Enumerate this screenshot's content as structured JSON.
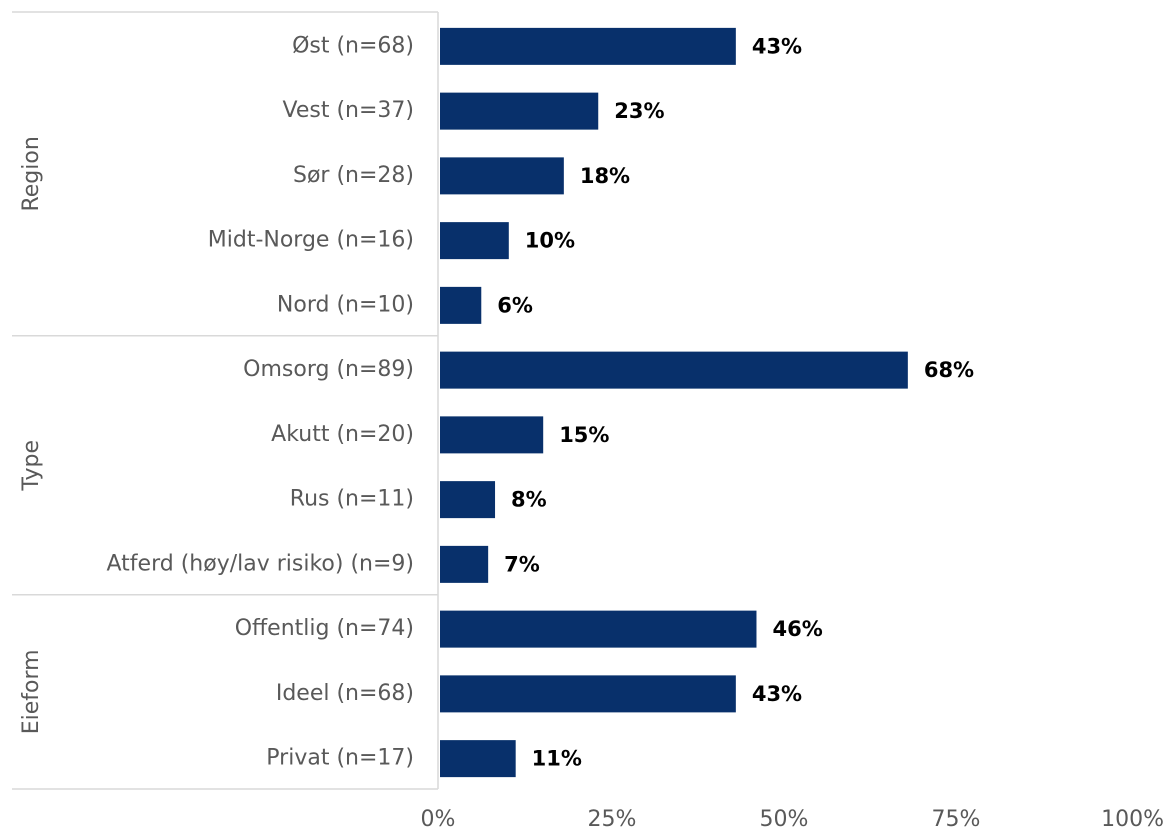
{
  "chart_data": {
    "type": "bar",
    "orientation": "horizontal",
    "groups": [
      {
        "name": "Region",
        "categories": [
          "Øst (n=68)",
          "Vest (n=37)",
          "Sør (n=28)",
          "Midt-Norge (n=16)",
          "Nord (n=10)"
        ]
      },
      {
        "name": "Type",
        "categories": [
          "Omsorg (n=89)",
          "Akutt (n=20)",
          "Rus (n=11)",
          "Atferd (høy/lav risiko) (n=9)"
        ]
      },
      {
        "name": "Eieform",
        "categories": [
          "Offentlig (n=74)",
          "Ideel (n=68)",
          "Privat (n=17)"
        ]
      }
    ],
    "categories": [
      "Øst (n=68)",
      "Vest (n=37)",
      "Sør (n=28)",
      "Midt-Norge (n=16)",
      "Nord (n=10)",
      "Omsorg (n=89)",
      "Akutt (n=20)",
      "Rus (n=11)",
      "Atferd (høy/lav risiko) (n=9)",
      "Offentlig (n=74)",
      "Ideel (n=68)",
      "Privat (n=17)"
    ],
    "values": [
      43,
      23,
      18,
      10,
      6,
      68,
      15,
      8,
      7,
      46,
      43,
      11
    ],
    "value_labels": [
      "43%",
      "23%",
      "18%",
      "10%",
      "6%",
      "68%",
      "15%",
      "8%",
      "7%",
      "46%",
      "43%",
      "11%"
    ],
    "xlim": [
      0,
      100
    ],
    "xticks": [
      0,
      25,
      50,
      75,
      100
    ],
    "xtick_labels": [
      "0%",
      "25%",
      "50%",
      "75%",
      "100%"
    ],
    "bar_color": "#08306b",
    "grid": false,
    "legend": "none"
  }
}
